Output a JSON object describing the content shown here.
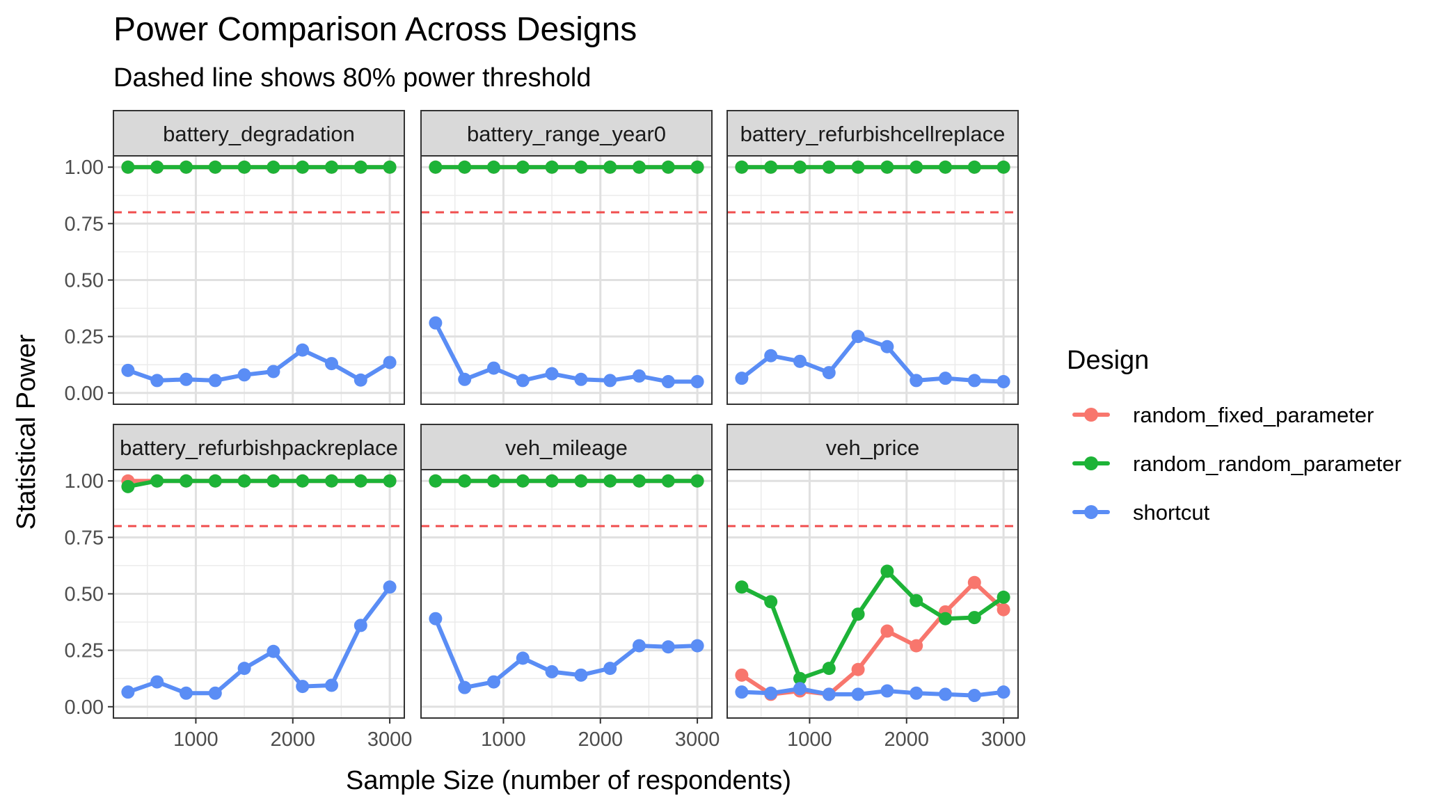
{
  "chart_data": {
    "type": "line",
    "title": "Power Comparison Across Designs",
    "subtitle": "Dashed line shows 80% power threshold",
    "xlabel": "Sample Size (number of respondents)",
    "ylabel": "Statistical Power",
    "xlim": [
      150,
      3150
    ],
    "ylim": [
      -0.05,
      1.05
    ],
    "x_ticks": [
      1000,
      2000,
      3000
    ],
    "y_ticks": [
      0.0,
      0.25,
      0.5,
      0.75,
      1.0
    ],
    "y_tick_labels": [
      "0.00",
      "0.25",
      "0.50",
      "0.75",
      "1.00"
    ],
    "reference_line": {
      "y": 0.8,
      "color": "#F04E4E",
      "style": "dashed"
    },
    "grid": true,
    "legend": {
      "title": "Design",
      "position": "right",
      "entries": [
        {
          "name": "random_fixed_parameter",
          "color": "#F8766D"
        },
        {
          "name": "random_random_parameter",
          "color": "#1DB337"
        },
        {
          "name": "shortcut",
          "color": "#5A8DF5"
        }
      ]
    },
    "x": [
      300,
      600,
      900,
      1200,
      1500,
      1800,
      2100,
      2400,
      2700,
      3000
    ],
    "panels": [
      {
        "strip": "battery_degradation",
        "series": [
          {
            "name": "random_fixed_parameter",
            "values": [
              1,
              1,
              1,
              1,
              1,
              1,
              1,
              1,
              1,
              1
            ]
          },
          {
            "name": "random_random_parameter",
            "values": [
              1,
              1,
              1,
              1,
              1,
              1,
              1,
              1,
              1,
              1
            ]
          },
          {
            "name": "shortcut",
            "values": [
              0.1,
              0.055,
              0.06,
              0.055,
              0.08,
              0.095,
              0.19,
              0.13,
              0.057,
              0.135
            ]
          }
        ]
      },
      {
        "strip": "battery_range_year0",
        "series": [
          {
            "name": "random_fixed_parameter",
            "values": [
              1,
              1,
              1,
              1,
              1,
              1,
              1,
              1,
              1,
              1
            ]
          },
          {
            "name": "random_random_parameter",
            "values": [
              1,
              1,
              1,
              1,
              1,
              1,
              1,
              1,
              1,
              1
            ]
          },
          {
            "name": "shortcut",
            "values": [
              0.31,
              0.06,
              0.11,
              0.055,
              0.085,
              0.06,
              0.055,
              0.075,
              0.05,
              0.05
            ]
          }
        ]
      },
      {
        "strip": "battery_refurbishcellreplace",
        "series": [
          {
            "name": "random_fixed_parameter",
            "values": [
              1,
              1,
              1,
              1,
              1,
              1,
              1,
              1,
              1,
              1
            ]
          },
          {
            "name": "random_random_parameter",
            "values": [
              1,
              1,
              1,
              1,
              1,
              1,
              1,
              1,
              1,
              1
            ]
          },
          {
            "name": "shortcut",
            "values": [
              0.065,
              0.165,
              0.14,
              0.09,
              0.25,
              0.205,
              0.055,
              0.065,
              0.055,
              0.05
            ]
          }
        ]
      },
      {
        "strip": "battery_refurbishpackreplace",
        "series": [
          {
            "name": "random_fixed_parameter",
            "values": [
              1.0,
              1,
              1,
              1,
              1,
              1,
              1,
              1,
              1,
              1
            ]
          },
          {
            "name": "random_random_parameter",
            "values": [
              0.975,
              1,
              1,
              1,
              1,
              1,
              1,
              1,
              1,
              1
            ]
          },
          {
            "name": "shortcut",
            "values": [
              0.065,
              0.11,
              0.06,
              0.06,
              0.17,
              0.245,
              0.09,
              0.095,
              0.36,
              0.53
            ]
          }
        ]
      },
      {
        "strip": "veh_mileage",
        "series": [
          {
            "name": "random_fixed_parameter",
            "values": [
              1,
              1,
              1,
              1,
              1,
              1,
              1,
              1,
              1,
              1
            ]
          },
          {
            "name": "random_random_parameter",
            "values": [
              1,
              1,
              1,
              1,
              1,
              1,
              1,
              1,
              1,
              1
            ]
          },
          {
            "name": "shortcut",
            "values": [
              0.39,
              0.085,
              0.11,
              0.215,
              0.155,
              0.14,
              0.17,
              0.27,
              0.265,
              0.27
            ]
          }
        ]
      },
      {
        "strip": "veh_price",
        "series": [
          {
            "name": "random_fixed_parameter",
            "values": [
              0.14,
              0.055,
              0.07,
              0.055,
              0.165,
              0.335,
              0.27,
              0.42,
              0.55,
              0.43
            ]
          },
          {
            "name": "random_random_parameter",
            "values": [
              0.53,
              0.465,
              0.125,
              0.17,
              0.41,
              0.6,
              0.47,
              0.39,
              0.395,
              0.485
            ]
          },
          {
            "name": "shortcut",
            "values": [
              0.065,
              0.06,
              0.08,
              0.055,
              0.055,
              0.07,
              0.06,
              0.055,
              0.05,
              0.065
            ]
          }
        ]
      }
    ]
  }
}
